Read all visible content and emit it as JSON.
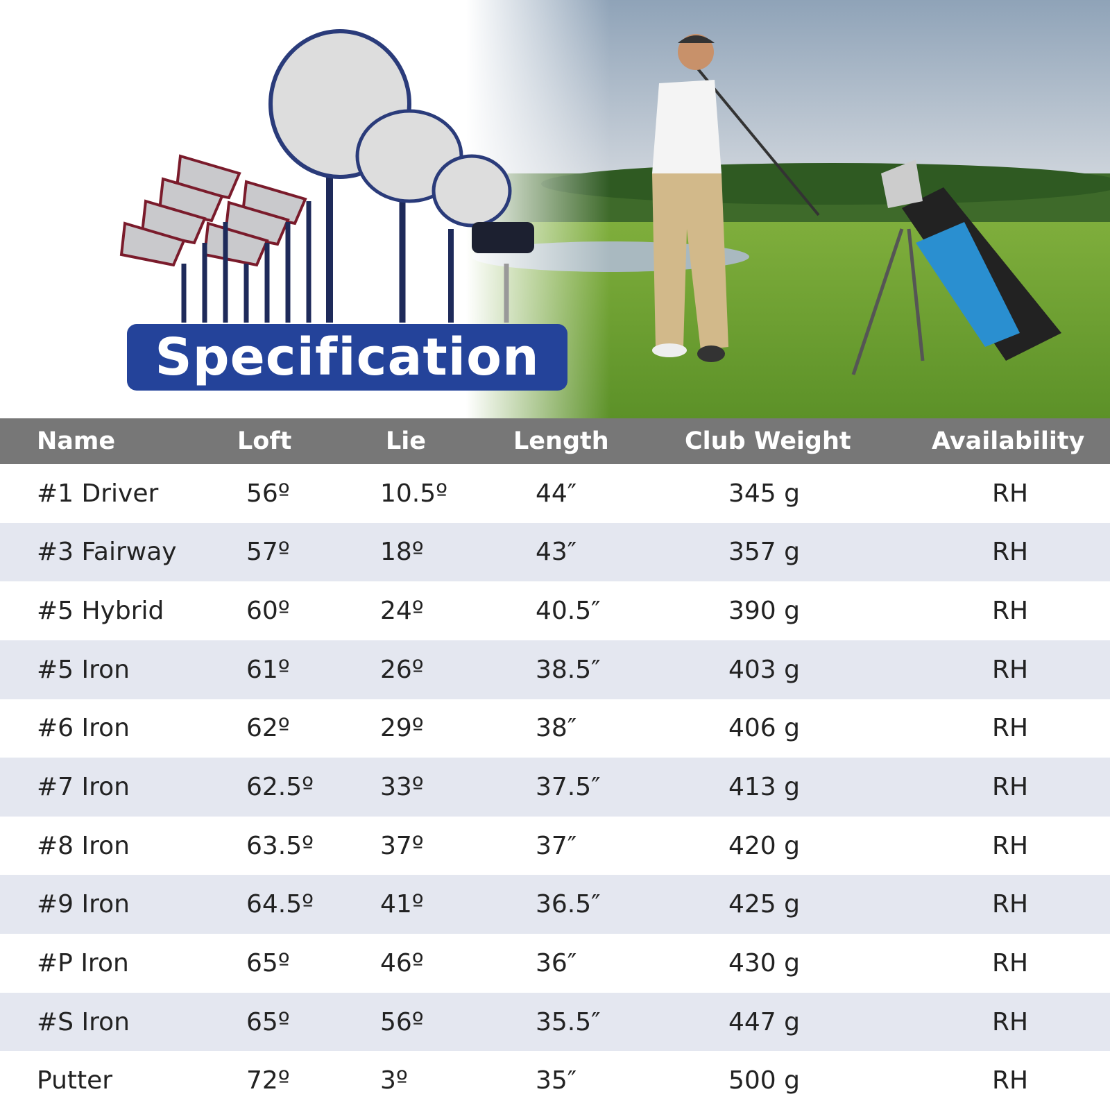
{
  "header": {
    "title": "Specification"
  },
  "table": {
    "columns": [
      "Name",
      "Loft",
      "Lie",
      "Length",
      "Club Weight",
      "Availability"
    ],
    "rows": [
      [
        "#1 Driver",
        "56º",
        "10.5º",
        "44″",
        "345 g",
        "RH"
      ],
      [
        "#3 Fairway",
        "57º",
        "18º",
        "43″",
        "357 g",
        "RH"
      ],
      [
        "#5 Hybrid",
        "60º",
        "24º",
        "40.5″",
        "390 g",
        "RH"
      ],
      [
        "#5 Iron",
        "61º",
        "26º",
        "38.5″",
        "403 g",
        "RH"
      ],
      [
        "#6 Iron",
        "62º",
        "29º",
        "38″",
        "406 g",
        "RH"
      ],
      [
        "#7 Iron",
        "62.5º",
        "33º",
        "37.5″",
        "413 g",
        "RH"
      ],
      [
        "#8 Iron",
        "63.5º",
        "37º",
        "37″",
        "420 g",
        "RH"
      ],
      [
        "#9 Iron",
        "64.5º",
        "41º",
        "36.5″",
        "425 g",
        "RH"
      ],
      [
        "#P Iron",
        "65º",
        "46º",
        "36″",
        "430 g",
        "RH"
      ],
      [
        "#S Iron",
        "65º",
        "56º",
        "35.5″",
        "447 g",
        "RH"
      ],
      [
        "Putter",
        "72º",
        "3º",
        "35″",
        "500 g",
        "RH"
      ]
    ]
  }
}
